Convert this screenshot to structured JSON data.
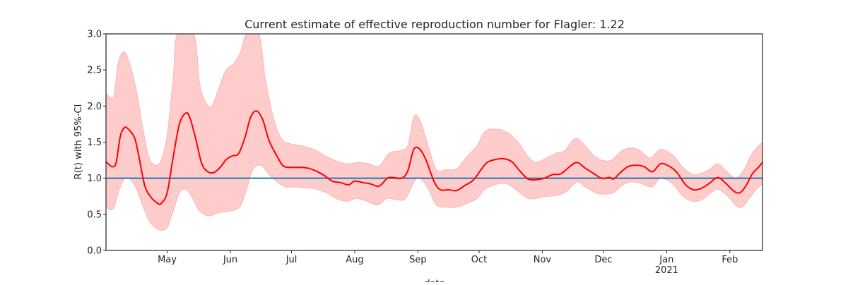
{
  "chart_data": {
    "type": "line",
    "title": "Current estimate of effective reproduction number for Flagler: 1.22",
    "xlabel": "date",
    "ylabel": "R(t) with 95%-CI",
    "ylim": [
      0,
      3
    ],
    "xlim": [
      "2020-04-01",
      "2021-02-17"
    ],
    "y_ticks": [
      "0.0",
      "0.5",
      "1.0",
      "1.5",
      "2.0",
      "2.5",
      "3.0"
    ],
    "x_ticks": [
      {
        "date": "2020-05-01",
        "label": "May",
        "sublabel": ""
      },
      {
        "date": "2020-06-01",
        "label": "Jun",
        "sublabel": ""
      },
      {
        "date": "2020-07-01",
        "label": "Jul",
        "sublabel": ""
      },
      {
        "date": "2020-08-01",
        "label": "Aug",
        "sublabel": ""
      },
      {
        "date": "2020-09-01",
        "label": "Sep",
        "sublabel": ""
      },
      {
        "date": "2020-10-01",
        "label": "Oct",
        "sublabel": ""
      },
      {
        "date": "2020-11-01",
        "label": "Nov",
        "sublabel": ""
      },
      {
        "date": "2020-12-01",
        "label": "Dec",
        "sublabel": ""
      },
      {
        "date": "2021-01-01",
        "label": "Jan",
        "sublabel": "2021"
      },
      {
        "date": "2021-02-01",
        "label": "Feb",
        "sublabel": ""
      }
    ],
    "reference_line": {
      "y": 1.0,
      "color": "#1f77b4"
    },
    "grid": false,
    "colors": {
      "estimate": "#ff0000",
      "band_fill": "#ffcccc",
      "band_edge": "#ffb3b3"
    },
    "series": [
      {
        "role": "estimate",
        "points": [
          [
            "2020-04-01",
            1.23
          ],
          [
            "2020-04-04",
            1.16
          ],
          [
            "2020-04-06",
            1.22
          ],
          [
            "2020-04-08",
            1.58
          ],
          [
            "2020-04-10",
            1.7
          ],
          [
            "2020-04-12",
            1.68
          ],
          [
            "2020-04-15",
            1.56
          ],
          [
            "2020-04-17",
            1.32
          ],
          [
            "2020-04-20",
            0.9
          ],
          [
            "2020-04-23",
            0.74
          ],
          [
            "2020-04-26",
            0.66
          ],
          [
            "2020-04-28",
            0.65
          ],
          [
            "2020-05-01",
            0.8
          ],
          [
            "2020-05-04",
            1.3
          ],
          [
            "2020-05-07",
            1.75
          ],
          [
            "2020-05-10",
            1.9
          ],
          [
            "2020-05-12",
            1.85
          ],
          [
            "2020-05-15",
            1.55
          ],
          [
            "2020-05-18",
            1.2
          ],
          [
            "2020-05-21",
            1.09
          ],
          [
            "2020-05-24",
            1.08
          ],
          [
            "2020-05-27",
            1.15
          ],
          [
            "2020-05-30",
            1.26
          ],
          [
            "2020-06-02",
            1.31
          ],
          [
            "2020-06-05",
            1.34
          ],
          [
            "2020-06-08",
            1.55
          ],
          [
            "2020-06-11",
            1.85
          ],
          [
            "2020-06-14",
            1.93
          ],
          [
            "2020-06-17",
            1.8
          ],
          [
            "2020-06-20",
            1.52
          ],
          [
            "2020-06-24",
            1.3
          ],
          [
            "2020-06-27",
            1.17
          ],
          [
            "2020-07-01",
            1.15
          ],
          [
            "2020-07-05",
            1.15
          ],
          [
            "2020-07-09",
            1.14
          ],
          [
            "2020-07-13",
            1.1
          ],
          [
            "2020-07-17",
            1.04
          ],
          [
            "2020-07-21",
            0.96
          ],
          [
            "2020-07-25",
            0.94
          ],
          [
            "2020-07-29",
            0.91
          ],
          [
            "2020-08-01",
            0.96
          ],
          [
            "2020-08-05",
            0.94
          ],
          [
            "2020-08-09",
            0.92
          ],
          [
            "2020-08-13",
            0.89
          ],
          [
            "2020-08-17",
            1.0
          ],
          [
            "2020-08-20",
            1.01
          ],
          [
            "2020-08-24",
            1.0
          ],
          [
            "2020-08-27",
            1.1
          ],
          [
            "2020-08-30",
            1.4
          ],
          [
            "2020-09-02",
            1.4
          ],
          [
            "2020-09-05",
            1.25
          ],
          [
            "2020-09-09",
            0.95
          ],
          [
            "2020-09-12",
            0.84
          ],
          [
            "2020-09-16",
            0.84
          ],
          [
            "2020-09-20",
            0.83
          ],
          [
            "2020-09-24",
            0.9
          ],
          [
            "2020-09-28",
            0.97
          ],
          [
            "2020-10-02",
            1.12
          ],
          [
            "2020-10-05",
            1.22
          ],
          [
            "2020-10-09",
            1.26
          ],
          [
            "2020-10-13",
            1.27
          ],
          [
            "2020-10-17",
            1.23
          ],
          [
            "2020-10-21",
            1.1
          ],
          [
            "2020-10-25",
            0.99
          ],
          [
            "2020-10-29",
            0.98
          ],
          [
            "2020-11-02",
            1.0
          ],
          [
            "2020-11-06",
            1.05
          ],
          [
            "2020-11-10",
            1.06
          ],
          [
            "2020-11-14",
            1.15
          ],
          [
            "2020-11-18",
            1.22
          ],
          [
            "2020-11-22",
            1.14
          ],
          [
            "2020-11-26",
            1.07
          ],
          [
            "2020-11-30",
            1.0
          ],
          [
            "2020-12-04",
            1.01
          ],
          [
            "2020-12-06",
            0.99
          ],
          [
            "2020-12-09",
            1.07
          ],
          [
            "2020-12-13",
            1.16
          ],
          [
            "2020-12-17",
            1.18
          ],
          [
            "2020-12-21",
            1.16
          ],
          [
            "2020-12-25",
            1.09
          ],
          [
            "2020-12-29",
            1.2
          ],
          [
            "2021-01-02",
            1.17
          ],
          [
            "2021-01-06",
            1.08
          ],
          [
            "2021-01-10",
            0.92
          ],
          [
            "2021-01-14",
            0.84
          ],
          [
            "2021-01-18",
            0.86
          ],
          [
            "2021-01-22",
            0.93
          ],
          [
            "2021-01-26",
            1.01
          ],
          [
            "2021-01-30",
            0.93
          ],
          [
            "2021-02-03",
            0.82
          ],
          [
            "2021-02-06",
            0.8
          ],
          [
            "2021-02-09",
            0.9
          ],
          [
            "2021-02-12",
            1.06
          ],
          [
            "2021-02-15",
            1.15
          ],
          [
            "2021-02-17",
            1.22
          ]
        ]
      },
      {
        "role": "upper_95ci",
        "points": [
          [
            "2020-04-01",
            2.18
          ],
          [
            "2020-04-03",
            2.12
          ],
          [
            "2020-04-05",
            2.15
          ],
          [
            "2020-04-07",
            2.6
          ],
          [
            "2020-04-10",
            2.75
          ],
          [
            "2020-04-13",
            2.55
          ],
          [
            "2020-04-16",
            2.2
          ],
          [
            "2020-04-19",
            1.7
          ],
          [
            "2020-04-22",
            1.3
          ],
          [
            "2020-04-25",
            1.18
          ],
          [
            "2020-04-28",
            1.25
          ],
          [
            "2020-05-01",
            1.6
          ],
          [
            "2020-05-04",
            2.4
          ],
          [
            "2020-05-06",
            3.0
          ],
          [
            "2020-05-14",
            3.0
          ],
          [
            "2020-05-17",
            2.3
          ],
          [
            "2020-05-20",
            2.05
          ],
          [
            "2020-05-23",
            2.0
          ],
          [
            "2020-05-27",
            2.3
          ],
          [
            "2020-05-30",
            2.5
          ],
          [
            "2020-06-03",
            2.6
          ],
          [
            "2020-06-06",
            2.75
          ],
          [
            "2020-06-09",
            3.0
          ],
          [
            "2020-06-15",
            3.0
          ],
          [
            "2020-06-18",
            2.4
          ],
          [
            "2020-06-22",
            1.85
          ],
          [
            "2020-06-26",
            1.55
          ],
          [
            "2020-06-30",
            1.48
          ],
          [
            "2020-07-06",
            1.45
          ],
          [
            "2020-07-12",
            1.4
          ],
          [
            "2020-07-17",
            1.32
          ],
          [
            "2020-07-22",
            1.25
          ],
          [
            "2020-07-28",
            1.2
          ],
          [
            "2020-08-03",
            1.22
          ],
          [
            "2020-08-08",
            1.2
          ],
          [
            "2020-08-13",
            1.17
          ],
          [
            "2020-08-18",
            1.35
          ],
          [
            "2020-08-23",
            1.38
          ],
          [
            "2020-08-27",
            1.45
          ],
          [
            "2020-08-30",
            1.85
          ],
          [
            "2020-09-02",
            1.8
          ],
          [
            "2020-09-06",
            1.45
          ],
          [
            "2020-09-10",
            1.12
          ],
          [
            "2020-09-15",
            1.12
          ],
          [
            "2020-09-20",
            1.13
          ],
          [
            "2020-09-25",
            1.3
          ],
          [
            "2020-09-30",
            1.45
          ],
          [
            "2020-10-04",
            1.65
          ],
          [
            "2020-10-10",
            1.68
          ],
          [
            "2020-10-15",
            1.63
          ],
          [
            "2020-10-20",
            1.5
          ],
          [
            "2020-10-25",
            1.3
          ],
          [
            "2020-10-29",
            1.22
          ],
          [
            "2020-11-03",
            1.28
          ],
          [
            "2020-11-08",
            1.35
          ],
          [
            "2020-11-12",
            1.38
          ],
          [
            "2020-11-17",
            1.55
          ],
          [
            "2020-11-21",
            1.48
          ],
          [
            "2020-11-26",
            1.32
          ],
          [
            "2020-11-30",
            1.25
          ],
          [
            "2020-12-05",
            1.25
          ],
          [
            "2020-12-10",
            1.38
          ],
          [
            "2020-12-15",
            1.42
          ],
          [
            "2020-12-19",
            1.38
          ],
          [
            "2020-12-24",
            1.28
          ],
          [
            "2020-12-29",
            1.4
          ],
          [
            "2021-01-04",
            1.32
          ],
          [
            "2021-01-09",
            1.15
          ],
          [
            "2021-01-14",
            1.05
          ],
          [
            "2021-01-18",
            1.07
          ],
          [
            "2021-01-22",
            1.12
          ],
          [
            "2021-01-26",
            1.2
          ],
          [
            "2021-01-31",
            1.08
          ],
          [
            "2021-02-04",
            1.0
          ],
          [
            "2021-02-08",
            1.12
          ],
          [
            "2021-02-12",
            1.35
          ],
          [
            "2021-02-17",
            1.5
          ]
        ]
      },
      {
        "role": "lower_95ci",
        "points": [
          [
            "2020-04-01",
            0.62
          ],
          [
            "2020-04-03",
            0.56
          ],
          [
            "2020-04-05",
            0.6
          ],
          [
            "2020-04-07",
            0.8
          ],
          [
            "2020-04-10",
            1.0
          ],
          [
            "2020-04-13",
            0.98
          ],
          [
            "2020-04-16",
            0.85
          ],
          [
            "2020-04-19",
            0.62
          ],
          [
            "2020-04-22",
            0.42
          ],
          [
            "2020-04-25",
            0.32
          ],
          [
            "2020-04-28",
            0.28
          ],
          [
            "2020-05-01",
            0.32
          ],
          [
            "2020-05-04",
            0.55
          ],
          [
            "2020-05-07",
            0.8
          ],
          [
            "2020-05-10",
            0.85
          ],
          [
            "2020-05-13",
            0.75
          ],
          [
            "2020-05-16",
            0.58
          ],
          [
            "2020-05-19",
            0.5
          ],
          [
            "2020-05-22",
            0.48
          ],
          [
            "2020-05-26",
            0.52
          ],
          [
            "2020-05-30",
            0.54
          ],
          [
            "2020-06-03",
            0.56
          ],
          [
            "2020-06-06",
            0.62
          ],
          [
            "2020-06-09",
            0.85
          ],
          [
            "2020-06-12",
            1.12
          ],
          [
            "2020-06-16",
            1.18
          ],
          [
            "2020-06-20",
            1.05
          ],
          [
            "2020-06-24",
            0.95
          ],
          [
            "2020-06-28",
            0.88
          ],
          [
            "2020-07-03",
            0.88
          ],
          [
            "2020-07-08",
            0.87
          ],
          [
            "2020-07-13",
            0.85
          ],
          [
            "2020-07-18",
            0.8
          ],
          [
            "2020-07-23",
            0.72
          ],
          [
            "2020-07-28",
            0.68
          ],
          [
            "2020-08-02",
            0.72
          ],
          [
            "2020-08-07",
            0.68
          ],
          [
            "2020-08-12",
            0.63
          ],
          [
            "2020-08-17",
            0.72
          ],
          [
            "2020-08-22",
            0.7
          ],
          [
            "2020-08-26",
            0.72
          ],
          [
            "2020-08-30",
            0.95
          ],
          [
            "2020-09-02",
            1.0
          ],
          [
            "2020-09-06",
            0.86
          ],
          [
            "2020-09-10",
            0.63
          ],
          [
            "2020-09-15",
            0.6
          ],
          [
            "2020-09-20",
            0.6
          ],
          [
            "2020-09-25",
            0.65
          ],
          [
            "2020-09-30",
            0.72
          ],
          [
            "2020-10-04",
            0.85
          ],
          [
            "2020-10-10",
            0.92
          ],
          [
            "2020-10-15",
            0.92
          ],
          [
            "2020-10-20",
            0.82
          ],
          [
            "2020-10-25",
            0.72
          ],
          [
            "2020-10-29",
            0.72
          ],
          [
            "2020-11-03",
            0.75
          ],
          [
            "2020-11-08",
            0.76
          ],
          [
            "2020-11-13",
            0.82
          ],
          [
            "2020-11-18",
            0.95
          ],
          [
            "2020-11-22",
            0.88
          ],
          [
            "2020-11-27",
            0.8
          ],
          [
            "2020-12-01",
            0.78
          ],
          [
            "2020-12-06",
            0.8
          ],
          [
            "2020-12-10",
            0.9
          ],
          [
            "2020-12-15",
            0.95
          ],
          [
            "2020-12-20",
            0.92
          ],
          [
            "2020-12-25",
            0.88
          ],
          [
            "2020-12-29",
            1.0
          ],
          [
            "2021-01-04",
            0.92
          ],
          [
            "2021-01-09",
            0.75
          ],
          [
            "2021-01-14",
            0.68
          ],
          [
            "2021-01-18",
            0.7
          ],
          [
            "2021-01-22",
            0.78
          ],
          [
            "2021-01-26",
            0.85
          ],
          [
            "2021-01-31",
            0.75
          ],
          [
            "2021-02-04",
            0.62
          ],
          [
            "2021-02-07",
            0.6
          ],
          [
            "2021-02-10",
            0.7
          ],
          [
            "2021-02-14",
            0.85
          ],
          [
            "2021-02-17",
            0.92
          ]
        ]
      }
    ]
  }
}
